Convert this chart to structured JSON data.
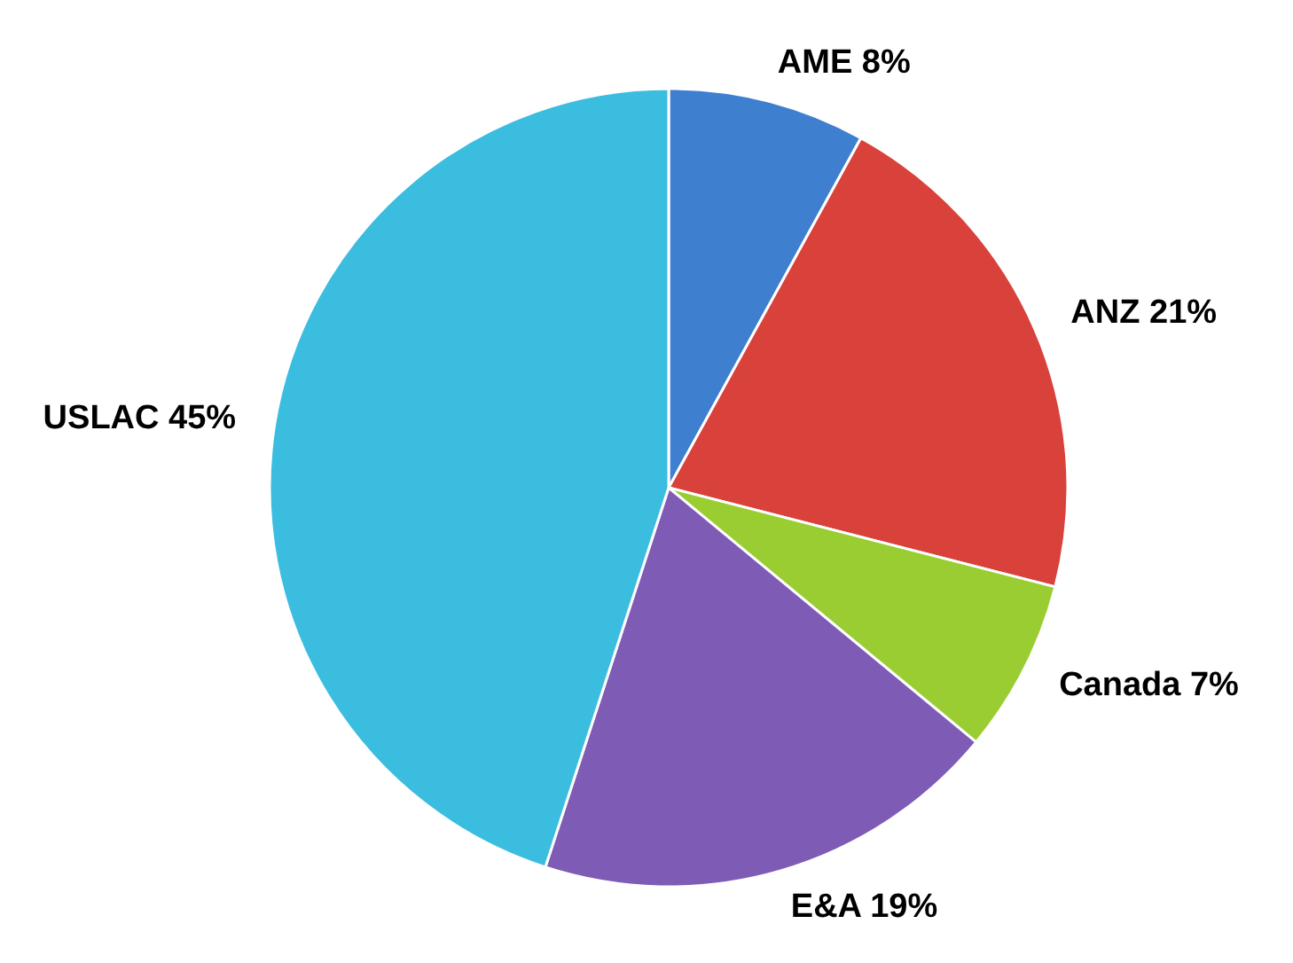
{
  "chart_data": {
    "type": "pie",
    "categories": [
      "AME",
      "ANZ",
      "Canada",
      "E&A",
      "USLAC"
    ],
    "values": [
      8,
      21,
      7,
      19,
      45
    ],
    "colors": [
      "#3f7fd0",
      "#d9413b",
      "#9acd32",
      "#7e5bb5",
      "#3bbde0"
    ],
    "value_labels": [
      "8%",
      "21%",
      "7%",
      "19%",
      "45%"
    ]
  }
}
